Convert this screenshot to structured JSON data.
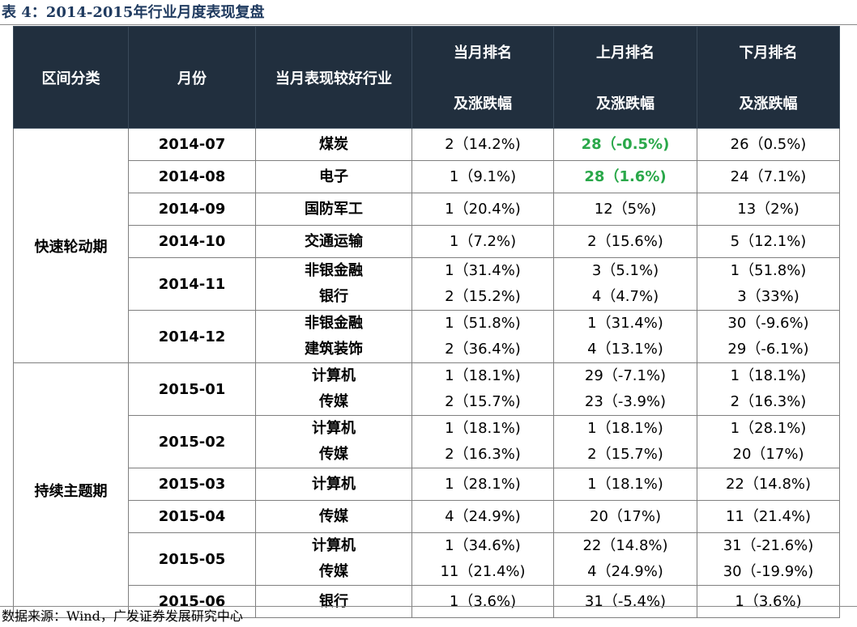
{
  "title": "表 4：2014-2015年行业月度表现复盘",
  "source": "数据来源：Wind，广发证券发展研究中心",
  "headers": {
    "category": "区间分类",
    "month": "月份",
    "industry": "当月表现较好行业",
    "current_line1": "当月排名",
    "current_line2": "及涨跌幅",
    "previous_line1": "上月排名",
    "previous_line2": "及涨跌幅",
    "next_line1": "下月排名",
    "next_line2": "及涨跌幅"
  },
  "highlight_color": "#2aa84a",
  "groups": [
    {
      "category": "快速轮动期",
      "rows": [
        {
          "month": "2014-07",
          "industries": [
            "煤炭"
          ],
          "current": [
            "2（14.2%)"
          ],
          "previous": [
            "28（-0.5%)"
          ],
          "previous_highlight": true,
          "next": [
            "26（0.5%)"
          ]
        },
        {
          "month": "2014-08",
          "industries": [
            "电子"
          ],
          "current": [
            "1（9.1%)"
          ],
          "previous": [
            "28（1.6%)"
          ],
          "previous_highlight": true,
          "next": [
            "24（7.1%)"
          ]
        },
        {
          "month": "2014-09",
          "industries": [
            "国防军工"
          ],
          "current": [
            "1（20.4%)"
          ],
          "previous": [
            "12（5%)"
          ],
          "next": [
            "13（2%)"
          ]
        },
        {
          "month": "2014-10",
          "industries": [
            "交通运输"
          ],
          "current": [
            "1（7.2%)"
          ],
          "previous": [
            "2（15.6%)"
          ],
          "next": [
            "5（12.1%)"
          ]
        },
        {
          "month": "2014-11",
          "industries": [
            "非银金融",
            "银行"
          ],
          "current": [
            "1（31.4%)",
            "2（15.2%)"
          ],
          "previous": [
            "3（5.1%)",
            "4（4.7%)"
          ],
          "next": [
            "1（51.8%)",
            "3（33%)"
          ]
        },
        {
          "month": "2014-12",
          "industries": [
            "非银金融",
            "建筑装饰"
          ],
          "current": [
            "1（51.8%)",
            "2（36.4%)"
          ],
          "previous": [
            "1（31.4%)",
            "4（13.1%)"
          ],
          "next": [
            "30（-9.6%)",
            "29（-6.1%)"
          ]
        }
      ]
    },
    {
      "category": "持续主题期",
      "rows": [
        {
          "month": "2015-01",
          "industries": [
            "计算机",
            "传媒"
          ],
          "current": [
            "1（18.1%)",
            "2（15.7%)"
          ],
          "previous": [
            "29（-7.1%)",
            "23（-3.9%)"
          ],
          "next": [
            "1（18.1%)",
            "2（16.3%)"
          ]
        },
        {
          "month": "2015-02",
          "industries": [
            "计算机",
            "传媒"
          ],
          "current": [
            "1（18.1%)",
            "2（16.3%)"
          ],
          "previous": [
            "1（18.1%)",
            "2（15.7%)"
          ],
          "next": [
            "1（28.1%)",
            "20（17%)"
          ]
        },
        {
          "month": "2015-03",
          "industries": [
            "计算机"
          ],
          "current": [
            "1（28.1%)"
          ],
          "previous": [
            "1（18.1%)"
          ],
          "next": [
            "22（14.8%)"
          ]
        },
        {
          "month": "2015-04",
          "industries": [
            "传媒"
          ],
          "current": [
            "4（24.9%)"
          ],
          "previous": [
            "20（17%)"
          ],
          "next": [
            "11（21.4%)"
          ]
        },
        {
          "month": "2015-05",
          "industries": [
            "计算机",
            "传媒"
          ],
          "current": [
            "1（34.6%)",
            "11（21.4%)"
          ],
          "previous": [
            "22（14.8%)",
            "4（24.9%)"
          ],
          "next": [
            "31（-21.6%)",
            "30（-19.9%)"
          ]
        },
        {
          "month": "2015-06",
          "industries": [
            "银行"
          ],
          "current": [
            "1（3.6%)"
          ],
          "previous": [
            "31（-5.4%)"
          ],
          "next": [
            "1（3.6%)"
          ]
        }
      ]
    }
  ]
}
